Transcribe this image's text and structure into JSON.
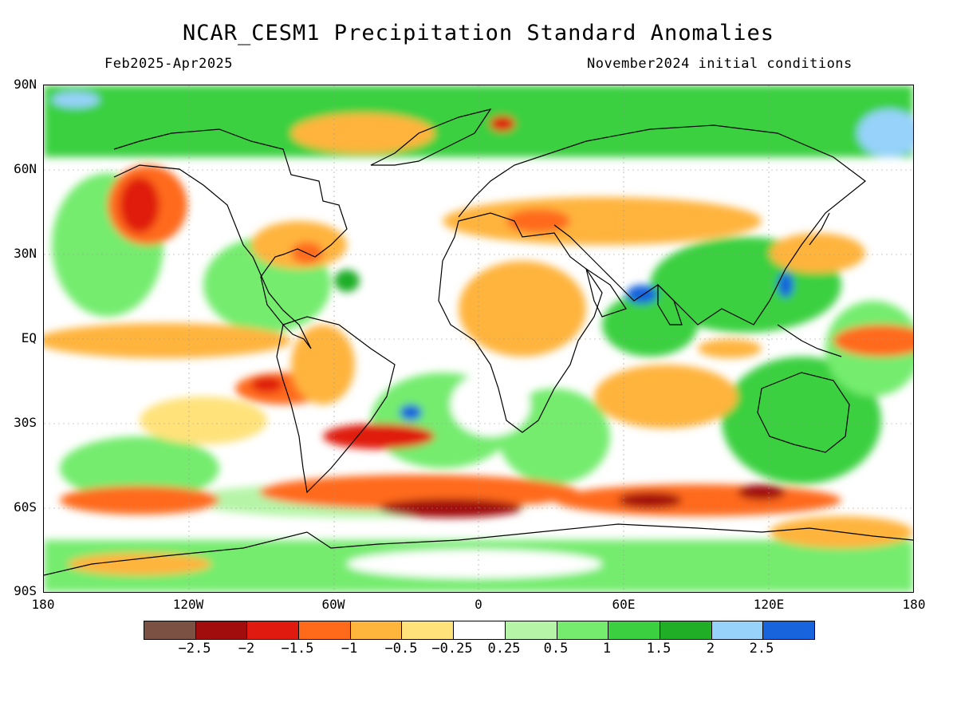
{
  "header": {
    "title": "NCAR_CESM1 Precipitation Standard Anomalies",
    "period": "Feb2025-Apr2025",
    "init": "November2024 initial conditions"
  },
  "axes": {
    "lat_labels": [
      "90N",
      "60N",
      "30N",
      "EQ",
      "30S",
      "60S",
      "90S"
    ],
    "lon_labels": [
      "180",
      "120W",
      "60W",
      "0",
      "60E",
      "120E",
      "180"
    ]
  },
  "colorbar": {
    "colors": [
      "#7b5144",
      "#a10c0c",
      "#e01a0e",
      "#ff6a1a",
      "#ffb43c",
      "#ffe27a",
      "#ffffff",
      "#b6f5a8",
      "#75ec6e",
      "#3ad03f",
      "#1fae25",
      "#96d2fa",
      "#1864dc"
    ],
    "labels": [
      "-2.5",
      "-2",
      "-1.5",
      "-1",
      "-0.5",
      "-0.25",
      "0.25",
      "0.5",
      "1",
      "1.5",
      "2",
      "2.5"
    ]
  }
}
